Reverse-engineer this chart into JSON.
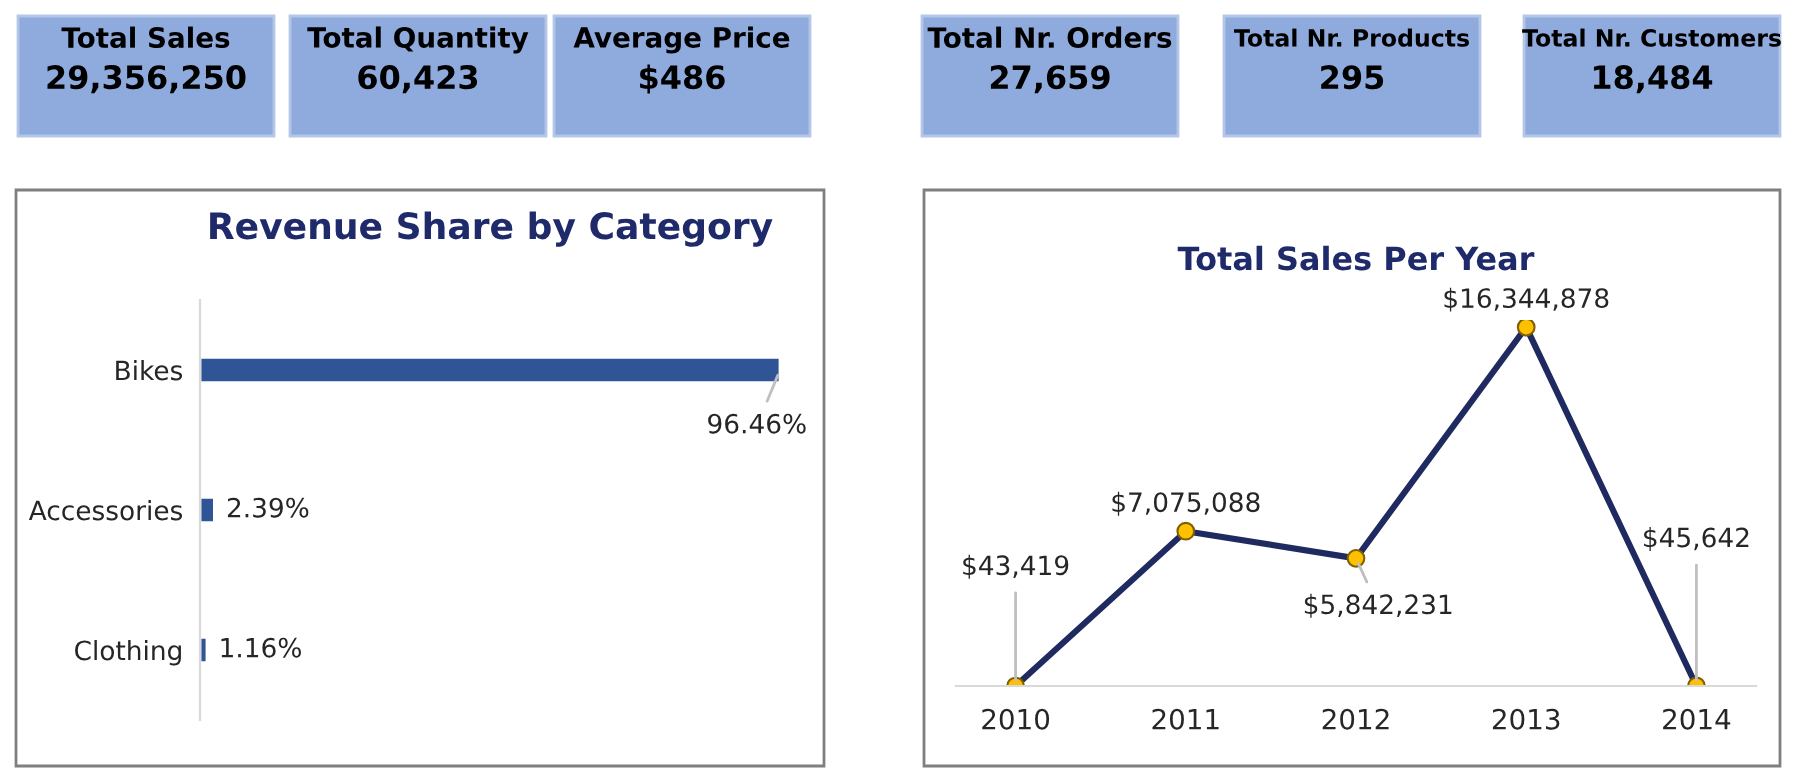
{
  "chart_data": [
    {
      "type": "other",
      "annotations": [
        "Total Sales",
        "29,356,250",
        "Total Quantity",
        "60,423",
        "Average Price",
        "$486",
        "Total Nr. Orders",
        "27,659",
        "Total Nr. Products",
        "295",
        "Total Nr. Customers",
        "18,484"
      ]
    },
    {
      "type": "bar",
      "orientation": "horizontal",
      "title": "Revenue Share by Category",
      "categories": [
        "Bikes",
        "Accessories",
        "Clothing"
      ],
      "values": [
        96.46,
        2.39,
        1.16
      ],
      "value_labels": [
        "96.46%",
        "2.39%",
        "1.16%"
      ],
      "color": "#2f5597",
      "grid": false,
      "legend": false
    },
    {
      "type": "line",
      "title": "Total Sales Per Year",
      "categories": [
        "2010",
        "2011",
        "2012",
        "2013",
        "2014"
      ],
      "values": [
        43419,
        7075088,
        5842231,
        16344878,
        45642
      ],
      "value_labels": [
        "$43,419",
        "$7,075,088",
        "$5,842,231",
        "$16,344,878",
        "$45,642"
      ],
      "color": "#1f2a60",
      "marker": "circle",
      "grid": false,
      "legend": false
    }
  ]
}
